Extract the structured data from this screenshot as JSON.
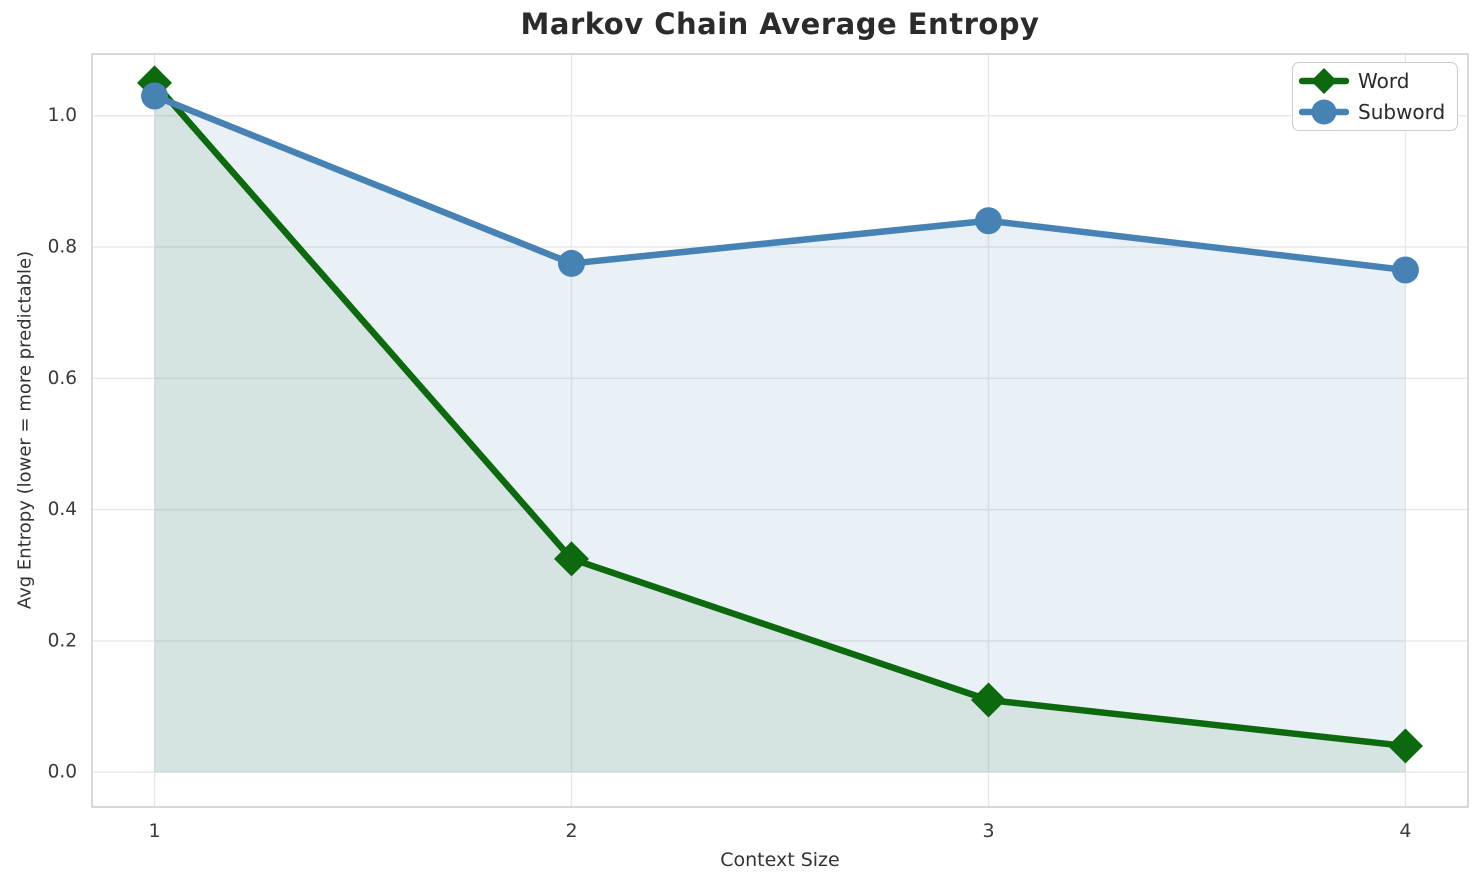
{
  "chart_data": {
    "type": "line",
    "title": "Markov Chain Average Entropy",
    "xlabel": "Context Size",
    "ylabel": "Avg Entropy (lower = more predictable)",
    "x": [
      1,
      2,
      3,
      4
    ],
    "series": [
      {
        "name": "Word",
        "values": [
          1.05,
          0.325,
          0.11,
          0.04
        ],
        "color": "#0d690d",
        "fill": "rgba(13,105,13,0.09)",
        "marker": "diamond"
      },
      {
        "name": "Subword",
        "values": [
          1.03,
          0.775,
          0.84,
          0.765
        ],
        "color": "#4682b4",
        "fill": "rgba(70,130,180,0.12)",
        "marker": "circle"
      }
    ],
    "fill_baseline": 0,
    "xticks": {
      "values": [
        1,
        2,
        3,
        4
      ],
      "labels": [
        "1",
        "2",
        "3",
        "4"
      ]
    },
    "yticks": {
      "values": [
        0.0,
        0.2,
        0.4,
        0.6,
        0.8,
        1.0
      ],
      "labels": [
        "0.0",
        "0.2",
        "0.4",
        "0.6",
        "0.8",
        "1.0"
      ]
    },
    "xlim": [
      0.85,
      4.15
    ],
    "ylim": [
      -0.053,
      1.094
    ],
    "grid": true,
    "legend": {
      "location": "upper right"
    },
    "style": {
      "grid_color": "#e8e8e8",
      "spine_color": "#cfcfcf",
      "line_width": 6.5,
      "tick_color": "#3a3a3a"
    }
  }
}
